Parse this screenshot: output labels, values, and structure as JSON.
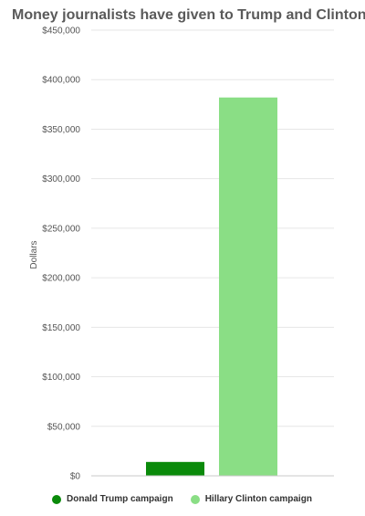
{
  "chart_data": {
    "type": "bar",
    "title": "Money journalists have given to Trump and Clinton",
    "ylabel": "Dollars",
    "xlabel": "",
    "ylim": [
      0,
      450000
    ],
    "yticks": [
      0,
      50000,
      100000,
      150000,
      200000,
      250000,
      300000,
      350000,
      400000,
      450000
    ],
    "ytick_labels": [
      "$0",
      "$50,000",
      "$100,000",
      "$150,000",
      "$200,000",
      "$250,000",
      "$300,000",
      "$350,000",
      "$400,000",
      "$450,000"
    ],
    "grid": true,
    "legend_position": "bottom-left",
    "series": [
      {
        "name": "Donald Trump campaign",
        "value": 14000,
        "color": "#0a8a0a"
      },
      {
        "name": "Hillary Clinton campaign",
        "value": 382000,
        "color": "#8ade85"
      }
    ]
  }
}
